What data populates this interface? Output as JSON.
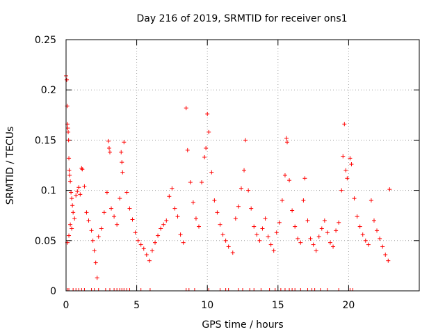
{
  "chart_data": {
    "type": "scatter",
    "title": "Day 216 of 2019, SRMTID for receiver ons1",
    "xlabel": "GPS time / hours",
    "ylabel": "SRMTID / TECUs",
    "xlim": [
      0,
      25
    ],
    "ylim": [
      0,
      0.25
    ],
    "x_ticks": [
      0,
      5,
      10,
      15,
      20
    ],
    "x_tick_labels": [
      "0",
      "5",
      "10",
      "15",
      "20"
    ],
    "y_ticks": [
      0,
      0.05,
      0.1,
      0.15,
      0.2,
      0.25
    ],
    "y_tick_labels": [
      "0",
      "0.05",
      "0.1",
      "0.15",
      "0.2",
      "0.25"
    ],
    "grid": true,
    "marker": "plus",
    "series_color": "#ff0000",
    "series": [
      {
        "name": "SRMTID",
        "points": [
          [
            0.0,
            0.214
          ],
          [
            0.05,
            0.21
          ],
          [
            0.08,
            0.184
          ],
          [
            0.1,
            0.166
          ],
          [
            0.12,
            0.162
          ],
          [
            0.15,
            0.158
          ],
          [
            0.18,
            0.15
          ],
          [
            0.2,
            0.132
          ],
          [
            0.22,
            0.12
          ],
          [
            0.25,
            0.115
          ],
          [
            0.3,
            0.109
          ],
          [
            0.35,
            0.098
          ],
          [
            0.4,
            0.092
          ],
          [
            0.45,
            0.085
          ],
          [
            0.5,
            0.078
          ],
          [
            0.3,
            0.066
          ],
          [
            0.4,
            0.062
          ],
          [
            0.2,
            0.055
          ],
          [
            0.1,
            0.048
          ],
          [
            0.6,
            0.072
          ],
          [
            0.7,
            0.095
          ],
          [
            0.8,
            0.099
          ],
          [
            0.9,
            0.103
          ],
          [
            1.0,
            0.096
          ],
          [
            1.1,
            0.122
          ],
          [
            1.15,
            0.121
          ],
          [
            1.3,
            0.104
          ],
          [
            1.45,
            0.078
          ],
          [
            1.6,
            0.07
          ],
          [
            1.8,
            0.06
          ],
          [
            1.9,
            0.05
          ],
          [
            2.0,
            0.04
          ],
          [
            2.1,
            0.028
          ],
          [
            2.2,
            0.013
          ],
          [
            2.3,
            0.054
          ],
          [
            2.5,
            0.062
          ],
          [
            2.7,
            0.078
          ],
          [
            2.9,
            0.098
          ],
          [
            3.0,
            0.149
          ],
          [
            3.05,
            0.142
          ],
          [
            3.1,
            0.138
          ],
          [
            3.2,
            0.082
          ],
          [
            3.4,
            0.074
          ],
          [
            3.6,
            0.066
          ],
          [
            3.8,
            0.092
          ],
          [
            3.9,
            0.138
          ],
          [
            3.95,
            0.128
          ],
          [
            4.0,
            0.118
          ],
          [
            4.1,
            0.148
          ],
          [
            4.3,
            0.098
          ],
          [
            4.5,
            0.082
          ],
          [
            4.7,
            0.071
          ],
          [
            4.9,
            0.058
          ],
          [
            5.1,
            0.05
          ],
          [
            5.3,
            0.046
          ],
          [
            5.5,
            0.042
          ],
          [
            5.7,
            0.036
          ],
          [
            5.9,
            0.03
          ],
          [
            6.1,
            0.04
          ],
          [
            6.3,
            0.048
          ],
          [
            6.5,
            0.055
          ],
          [
            6.7,
            0.062
          ],
          [
            6.9,
            0.066
          ],
          [
            7.1,
            0.07
          ],
          [
            7.3,
            0.094
          ],
          [
            7.5,
            0.102
          ],
          [
            7.7,
            0.082
          ],
          [
            7.9,
            0.074
          ],
          [
            8.1,
            0.056
          ],
          [
            8.3,
            0.048
          ],
          [
            8.5,
            0.182
          ],
          [
            8.6,
            0.14
          ],
          [
            8.8,
            0.108
          ],
          [
            9.0,
            0.088
          ],
          [
            9.2,
            0.072
          ],
          [
            9.4,
            0.064
          ],
          [
            9.6,
            0.108
          ],
          [
            9.8,
            0.133
          ],
          [
            9.9,
            0.142
          ],
          [
            10.0,
            0.176
          ],
          [
            10.1,
            0.158
          ],
          [
            10.3,
            0.118
          ],
          [
            10.5,
            0.09
          ],
          [
            10.7,
            0.078
          ],
          [
            10.9,
            0.066
          ],
          [
            11.1,
            0.056
          ],
          [
            11.3,
            0.05
          ],
          [
            11.5,
            0.044
          ],
          [
            11.8,
            0.038
          ],
          [
            12.0,
            0.072
          ],
          [
            12.2,
            0.084
          ],
          [
            12.4,
            0.102
          ],
          [
            12.6,
            0.12
          ],
          [
            12.7,
            0.15
          ],
          [
            12.9,
            0.1
          ],
          [
            13.1,
            0.082
          ],
          [
            13.3,
            0.064
          ],
          [
            13.5,
            0.056
          ],
          [
            13.7,
            0.05
          ],
          [
            13.9,
            0.062
          ],
          [
            14.1,
            0.072
          ],
          [
            14.3,
            0.054
          ],
          [
            14.5,
            0.046
          ],
          [
            14.7,
            0.04
          ],
          [
            14.9,
            0.058
          ],
          [
            15.1,
            0.068
          ],
          [
            15.3,
            0.09
          ],
          [
            15.5,
            0.115
          ],
          [
            15.6,
            0.152
          ],
          [
            15.65,
            0.148
          ],
          [
            15.8,
            0.11
          ],
          [
            16.0,
            0.08
          ],
          [
            16.2,
            0.064
          ],
          [
            16.4,
            0.052
          ],
          [
            16.6,
            0.048
          ],
          [
            16.8,
            0.09
          ],
          [
            16.9,
            0.112
          ],
          [
            17.1,
            0.07
          ],
          [
            17.3,
            0.052
          ],
          [
            17.5,
            0.046
          ],
          [
            17.7,
            0.04
          ],
          [
            17.9,
            0.054
          ],
          [
            18.1,
            0.062
          ],
          [
            18.3,
            0.07
          ],
          [
            18.5,
            0.058
          ],
          [
            18.7,
            0.048
          ],
          [
            18.9,
            0.044
          ],
          [
            19.1,
            0.06
          ],
          [
            19.3,
            0.068
          ],
          [
            19.5,
            0.1
          ],
          [
            19.6,
            0.134
          ],
          [
            19.7,
            0.166
          ],
          [
            19.8,
            0.12
          ],
          [
            19.9,
            0.112
          ],
          [
            20.1,
            0.132
          ],
          [
            20.2,
            0.126
          ],
          [
            20.4,
            0.092
          ],
          [
            20.6,
            0.074
          ],
          [
            20.8,
            0.064
          ],
          [
            21.0,
            0.056
          ],
          [
            21.2,
            0.05
          ],
          [
            21.4,
            0.046
          ],
          [
            21.6,
            0.09
          ],
          [
            21.8,
            0.07
          ],
          [
            22.0,
            0.06
          ],
          [
            22.2,
            0.052
          ],
          [
            22.4,
            0.044
          ],
          [
            22.6,
            0.036
          ],
          [
            22.8,
            0.03
          ],
          [
            22.9,
            0.101
          ]
        ]
      }
    ],
    "zero_points_x": [
      0.1,
      0.2,
      0.5,
      0.7,
      0.9,
      1.1,
      1.3,
      1.8,
      2.0,
      2.3,
      2.8,
      3.1,
      3.4,
      3.6,
      3.8,
      3.95,
      4.1,
      4.3,
      4.5,
      5.3,
      5.95,
      8.5,
      8.7,
      9.1,
      10.1,
      10.9,
      11.3,
      11.5,
      12.2,
      12.5,
      13.0,
      13.3,
      13.8,
      14.4,
      14.8,
      15.2,
      15.5,
      15.8,
      16.0,
      16.2,
      16.6,
      17.1,
      17.4,
      17.6,
      18.0,
      18.5,
      19.3,
      20.1,
      20.3
    ]
  }
}
